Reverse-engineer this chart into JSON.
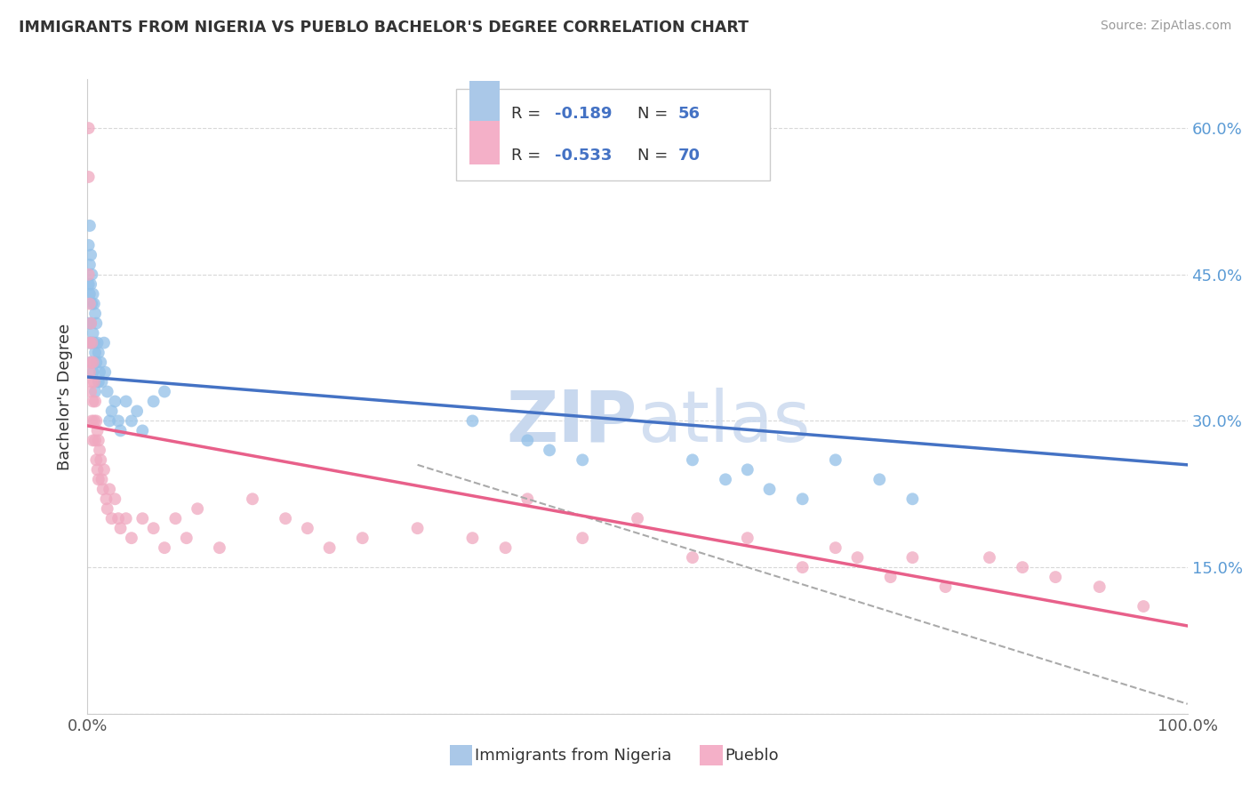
{
  "title": "IMMIGRANTS FROM NIGERIA VS PUEBLO BACHELOR'S DEGREE CORRELATION CHART",
  "source": "Source: ZipAtlas.com",
  "ylabel": "Bachelor's Degree",
  "yticks": [
    0.0,
    0.15,
    0.3,
    0.45,
    0.6
  ],
  "ytick_labels": [
    "",
    "15.0%",
    "30.0%",
    "45.0%",
    "60.0%"
  ],
  "xlim": [
    0.0,
    1.0
  ],
  "ylim": [
    0.0,
    0.65
  ],
  "blue_scatter": {
    "x": [
      0.001,
      0.001,
      0.001,
      0.002,
      0.002,
      0.002,
      0.002,
      0.003,
      0.003,
      0.003,
      0.003,
      0.004,
      0.004,
      0.004,
      0.005,
      0.005,
      0.005,
      0.006,
      0.006,
      0.007,
      0.007,
      0.007,
      0.008,
      0.008,
      0.009,
      0.01,
      0.01,
      0.011,
      0.012,
      0.013,
      0.015,
      0.016,
      0.018,
      0.02,
      0.022,
      0.025,
      0.028,
      0.03,
      0.035,
      0.04,
      0.045,
      0.05,
      0.06,
      0.07,
      0.35,
      0.4,
      0.42,
      0.45,
      0.55,
      0.58,
      0.6,
      0.62,
      0.65,
      0.68,
      0.72,
      0.75
    ],
    "y": [
      0.48,
      0.44,
      0.4,
      0.5,
      0.46,
      0.43,
      0.38,
      0.47,
      0.44,
      0.4,
      0.36,
      0.45,
      0.42,
      0.38,
      0.43,
      0.39,
      0.35,
      0.42,
      0.38,
      0.41,
      0.37,
      0.33,
      0.4,
      0.36,
      0.38,
      0.37,
      0.34,
      0.35,
      0.36,
      0.34,
      0.38,
      0.35,
      0.33,
      0.3,
      0.31,
      0.32,
      0.3,
      0.29,
      0.32,
      0.3,
      0.31,
      0.29,
      0.32,
      0.33,
      0.3,
      0.28,
      0.27,
      0.26,
      0.26,
      0.24,
      0.25,
      0.23,
      0.22,
      0.26,
      0.24,
      0.22
    ],
    "color": "#92c0e8",
    "edgecolor": "#92c0e8",
    "alpha": 0.75,
    "size": 100
  },
  "pink_scatter": {
    "x": [
      0.001,
      0.001,
      0.001,
      0.002,
      0.002,
      0.002,
      0.003,
      0.003,
      0.003,
      0.004,
      0.004,
      0.004,
      0.005,
      0.005,
      0.005,
      0.006,
      0.006,
      0.007,
      0.007,
      0.008,
      0.008,
      0.009,
      0.009,
      0.01,
      0.01,
      0.011,
      0.012,
      0.013,
      0.014,
      0.015,
      0.017,
      0.018,
      0.02,
      0.022,
      0.025,
      0.028,
      0.03,
      0.035,
      0.04,
      0.05,
      0.06,
      0.07,
      0.08,
      0.09,
      0.1,
      0.12,
      0.15,
      0.18,
      0.2,
      0.22,
      0.25,
      0.3,
      0.35,
      0.38,
      0.4,
      0.45,
      0.5,
      0.55,
      0.6,
      0.65,
      0.68,
      0.7,
      0.73,
      0.75,
      0.78,
      0.82,
      0.85,
      0.88,
      0.92,
      0.96
    ],
    "y": [
      0.6,
      0.55,
      0.45,
      0.42,
      0.38,
      0.35,
      0.4,
      0.36,
      0.33,
      0.38,
      0.34,
      0.3,
      0.36,
      0.32,
      0.28,
      0.34,
      0.3,
      0.32,
      0.28,
      0.3,
      0.26,
      0.29,
      0.25,
      0.28,
      0.24,
      0.27,
      0.26,
      0.24,
      0.23,
      0.25,
      0.22,
      0.21,
      0.23,
      0.2,
      0.22,
      0.2,
      0.19,
      0.2,
      0.18,
      0.2,
      0.19,
      0.17,
      0.2,
      0.18,
      0.21,
      0.17,
      0.22,
      0.2,
      0.19,
      0.17,
      0.18,
      0.19,
      0.18,
      0.17,
      0.22,
      0.18,
      0.2,
      0.16,
      0.18,
      0.15,
      0.17,
      0.16,
      0.14,
      0.16,
      0.13,
      0.16,
      0.15,
      0.14,
      0.13,
      0.11
    ],
    "color": "#f0a8c0",
    "edgecolor": "#f0a8c0",
    "alpha": 0.75,
    "size": 100
  },
  "blue_line": {
    "x": [
      0.0,
      1.0
    ],
    "y": [
      0.345,
      0.255
    ],
    "color": "#4472c4",
    "linewidth": 2.5
  },
  "pink_line": {
    "x": [
      0.0,
      1.0
    ],
    "y": [
      0.295,
      0.09
    ],
    "color": "#e8608a",
    "linewidth": 2.5
  },
  "dashed_line": {
    "x": [
      0.3,
      1.0
    ],
    "y": [
      0.255,
      0.01
    ],
    "color": "#aaaaaa",
    "linewidth": 1.5,
    "linestyle": "--"
  },
  "legend_patch1_color": "#aac8e8",
  "legend_patch2_color": "#f4b0c8",
  "R1_text": "R = ",
  "R1_val": "-0.189",
  "N1_text": "  N = ",
  "N1_val": "56",
  "R2_text": "R = ",
  "R2_val": "-0.533",
  "N2_text": "  N = ",
  "N2_val": "70",
  "text_color_dark": "#333333",
  "text_color_blue": "#4472c4",
  "watermark_zip": "ZIP",
  "watermark_atlas": "atlas",
  "watermark_color": "#ccdcf0",
  "bottom_legend_blue_label": "Immigrants from Nigeria",
  "bottom_legend_pink_label": "Pueblo",
  "background_color": "#ffffff",
  "grid_color": "#d8d8d8"
}
